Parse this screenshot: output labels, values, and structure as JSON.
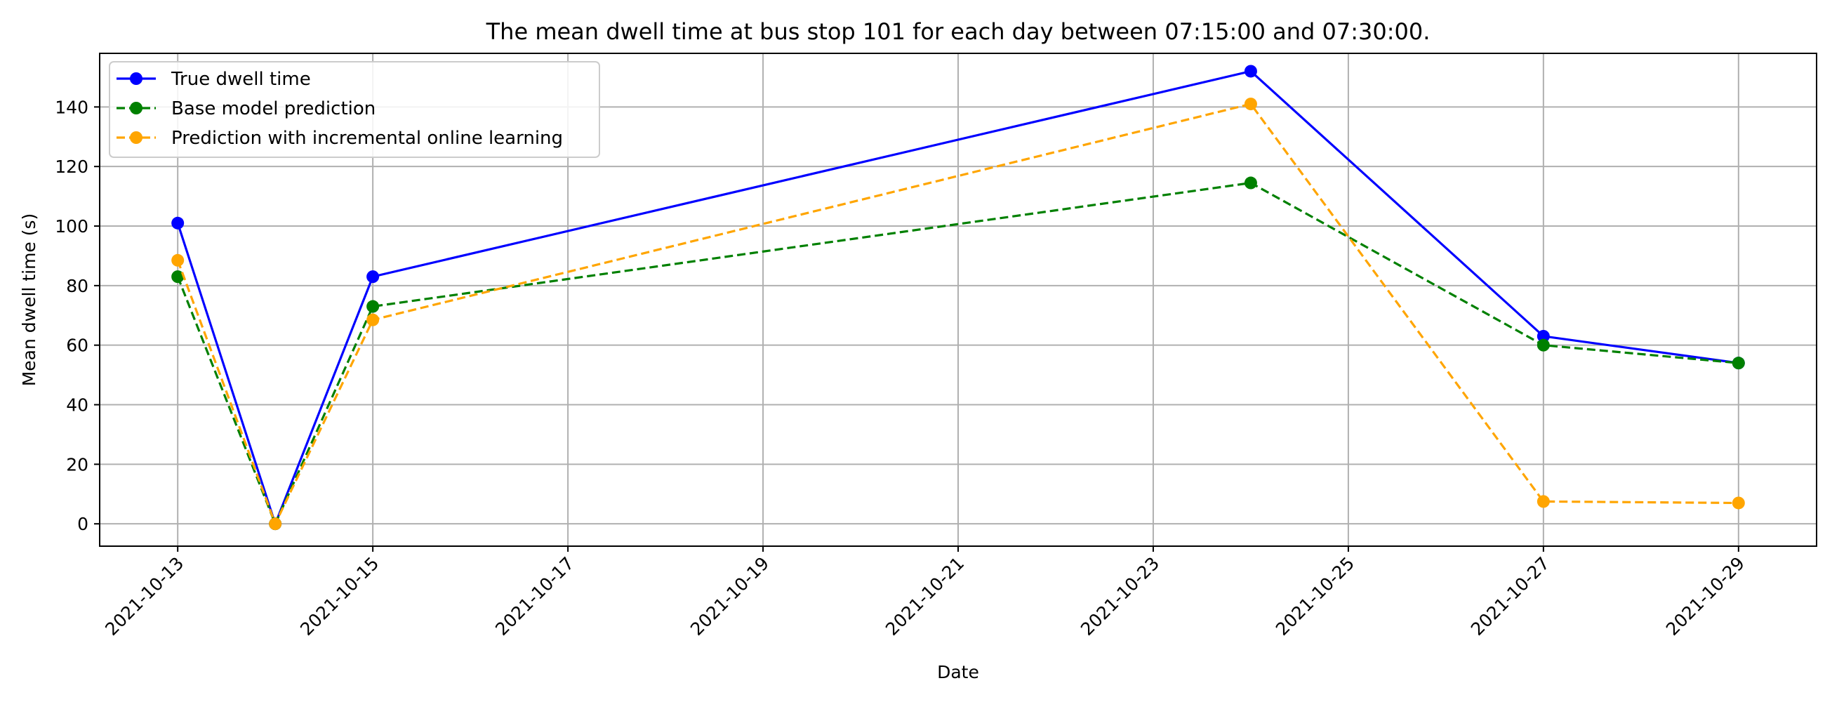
{
  "chart_data": {
    "type": "line",
    "title": "The mean dwell time at bus stop 101 for each day between 07:15:00 and 07:30:00.",
    "xlabel": "Date",
    "ylabel": "Mean dwell time (s)",
    "x": [
      "2021-10-13",
      "2021-10-14",
      "2021-10-15",
      "2021-10-24",
      "2021-10-27",
      "2021-10-29"
    ],
    "x_ticks": [
      "2021-10-13",
      "2021-10-15",
      "2021-10-17",
      "2021-10-19",
      "2021-10-21",
      "2021-10-23",
      "2021-10-25",
      "2021-10-27",
      "2021-10-29"
    ],
    "xlim": [
      "2021-10-12.2",
      "2021-10-29.8"
    ],
    "y_ticks": [
      0,
      20,
      40,
      60,
      80,
      100,
      120,
      140
    ],
    "ylim": [
      -7.5,
      158
    ],
    "grid": true,
    "legend_position": "top-left",
    "series": [
      {
        "name": "True dwell time",
        "color": "#0000ff",
        "style": "solid",
        "values": [
          101,
          0,
          83,
          152,
          63,
          54
        ]
      },
      {
        "name": "Base model prediction",
        "color": "#008000",
        "style": "dashed",
        "values": [
          83,
          0,
          73,
          114.5,
          60,
          54
        ]
      },
      {
        "name": "Prediction with incremental online learning",
        "color": "#ffa500",
        "style": "dashed",
        "values": [
          88.5,
          0,
          68.5,
          141,
          7.5,
          7
        ]
      }
    ]
  }
}
